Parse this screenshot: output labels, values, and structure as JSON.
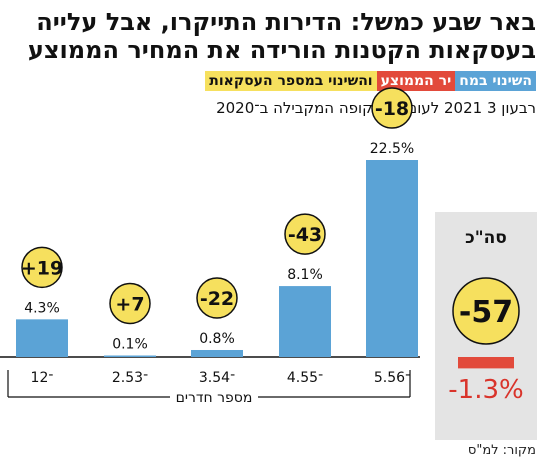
{
  "title_lines": [
    "באר שבע כמשל: הדירות התייקרו, אבל עלייה",
    "בעסקאות הקטנות הורידה את המחיר הממוצע"
  ],
  "legend": {
    "blue": "השינוי במח",
    "red": "יר הממוצע",
    "yellow": " והשינוי במספר העסקאות"
  },
  "subtitle": "רבעון 3 2021 לעומת התקופה המקבילה ב־2020",
  "axis_caption": "מספר חדרים",
  "source": "מקור: למ\"ס",
  "colors": {
    "bar": "#5ba3d6",
    "bubble": "#f6e05e",
    "negative": "#e24a3b",
    "negative_text": "#d9342b",
    "total_panel": "#e4e4e4"
  },
  "chart_data": {
    "type": "bar",
    "categories": [
      "1־2",
      "2.5־3",
      "3.5־4",
      "4.5־5",
      "5.5־6"
    ],
    "values": [
      4.3,
      0.1,
      0.8,
      8.1,
      22.5
    ],
    "value_labels": [
      "4.3%",
      "0.1%",
      "0.8%",
      "8.1%",
      "22.5%"
    ],
    "transaction_change": [
      19,
      7,
      -22,
      -43,
      -18
    ],
    "transaction_labels": [
      "+19",
      "+7",
      "-22",
      "-43",
      "-18"
    ],
    "total": {
      "label": "סה\"כ",
      "value": -1.3,
      "value_label": "-1.3%",
      "transaction_change": -57,
      "transaction_label": "-57"
    },
    "ylim": [
      -2,
      24
    ]
  }
}
